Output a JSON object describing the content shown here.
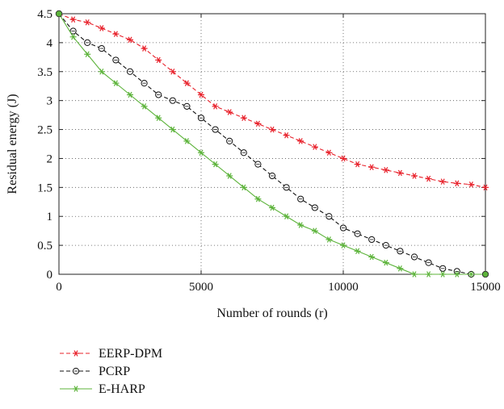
{
  "chart_data": {
    "type": "line",
    "title": "",
    "xlabel": "Number of rounds (r)",
    "ylabel": "Residual energy (J)",
    "xlim": [
      0,
      15000
    ],
    "ylim": [
      0,
      4.5
    ],
    "x_ticks": [
      0,
      5000,
      10000,
      15000
    ],
    "x_tick_labels": [
      "0",
      "5000",
      "10000",
      "15000"
    ],
    "y_ticks": [
      0,
      0.5,
      1,
      1.5,
      2,
      2.5,
      3,
      3.5,
      4,
      4.5
    ],
    "y_tick_labels": [
      "0",
      "0.5",
      "1",
      "1.5",
      "2",
      "2.5",
      "3",
      "3.5",
      "4",
      "4.5"
    ],
    "grid": true,
    "legend_position": "below",
    "x": [
      0,
      500,
      1000,
      1500,
      2000,
      2500,
      3000,
      3500,
      4000,
      4500,
      5000,
      5500,
      6000,
      6500,
      7000,
      7500,
      8000,
      8500,
      9000,
      9500,
      10000,
      10500,
      11000,
      11500,
      12000,
      12500,
      13000,
      13500,
      14000,
      14500,
      15000
    ],
    "series": [
      {
        "name": "EERP-DPM",
        "color": "#e8202a",
        "line_style": "dashed",
        "marker": "asterisk",
        "values": [
          4.5,
          4.4,
          4.35,
          4.25,
          4.15,
          4.05,
          3.9,
          3.7,
          3.5,
          3.3,
          3.1,
          2.9,
          2.8,
          2.7,
          2.6,
          2.5,
          2.4,
          2.3,
          2.2,
          2.1,
          2.0,
          1.9,
          1.85,
          1.8,
          1.75,
          1.7,
          1.65,
          1.6,
          1.57,
          1.55,
          1.5
        ]
      },
      {
        "name": "PCRP",
        "color": "#111111",
        "line_style": "dashed",
        "marker": "circle",
        "values": [
          4.5,
          4.2,
          4.0,
          3.9,
          3.7,
          3.5,
          3.3,
          3.1,
          3.0,
          2.9,
          2.7,
          2.5,
          2.3,
          2.1,
          1.9,
          1.7,
          1.5,
          1.3,
          1.15,
          1.0,
          0.8,
          0.7,
          0.6,
          0.5,
          0.4,
          0.3,
          0.2,
          0.1,
          0.05,
          0.0,
          0.0
        ]
      },
      {
        "name": "E-HARP",
        "color": "#5cb33a",
        "line_style": "solid",
        "marker": "asterisk",
        "values": [
          4.5,
          4.1,
          3.8,
          3.5,
          3.3,
          3.1,
          2.9,
          2.7,
          2.5,
          2.3,
          2.1,
          1.9,
          1.7,
          1.5,
          1.3,
          1.15,
          1.0,
          0.85,
          0.75,
          0.6,
          0.5,
          0.4,
          0.3,
          0.2,
          0.1,
          0.0,
          0.0,
          0.0,
          0.0,
          0.0,
          0.0
        ]
      }
    ]
  }
}
